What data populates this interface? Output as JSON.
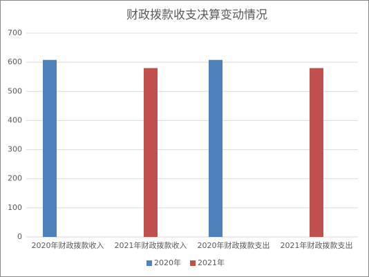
{
  "chart_data": {
    "type": "bar",
    "title": "财政拨款收支决算变动情况",
    "categories": [
      "2020年财政拨款收入",
      "2021年财政拨款收入",
      "2020年财政拨款支出",
      "2021年财政拨款支出"
    ],
    "series": [
      {
        "name": "2020年",
        "color": "#4f81bd",
        "values": [
          608,
          null,
          608,
          null
        ]
      },
      {
        "name": "2021年",
        "color": "#c0504d",
        "values": [
          null,
          580,
          null,
          580
        ]
      }
    ],
    "ylim": [
      0,
      700
    ],
    "yticks": [
      0,
      100,
      200,
      300,
      400,
      500,
      600,
      700
    ],
    "grid": true,
    "legend": "bottom"
  }
}
